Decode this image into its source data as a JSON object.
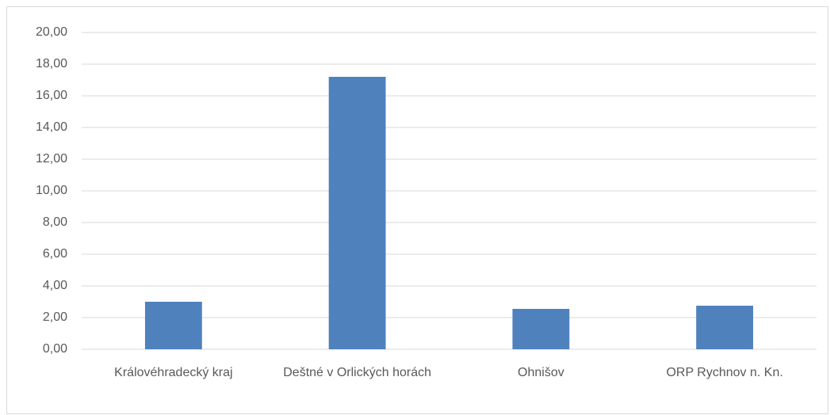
{
  "chart_data": {
    "type": "bar",
    "categories": [
      "Královéhradecký kraj",
      "Deštné v Orlických horách",
      "Ohnišov",
      "ORP Rychnov n. Kn."
    ],
    "values": [
      3.0,
      17.2,
      2.55,
      2.75
    ],
    "color": "#4f81bd",
    "ylim": [
      0,
      20
    ],
    "yticks": [
      {
        "value": 0,
        "label": "0,00"
      },
      {
        "value": 2,
        "label": "2,00"
      },
      {
        "value": 4,
        "label": "4,00"
      },
      {
        "value": 6,
        "label": "6,00"
      },
      {
        "value": 8,
        "label": "8,00"
      },
      {
        "value": 10,
        "label": "10,00"
      },
      {
        "value": 12,
        "label": "12,00"
      },
      {
        "value": 14,
        "label": "14,00"
      },
      {
        "value": 16,
        "label": "16,00"
      },
      {
        "value": 18,
        "label": "18,00"
      },
      {
        "value": 20,
        "label": "20,00"
      }
    ],
    "grid": true
  }
}
